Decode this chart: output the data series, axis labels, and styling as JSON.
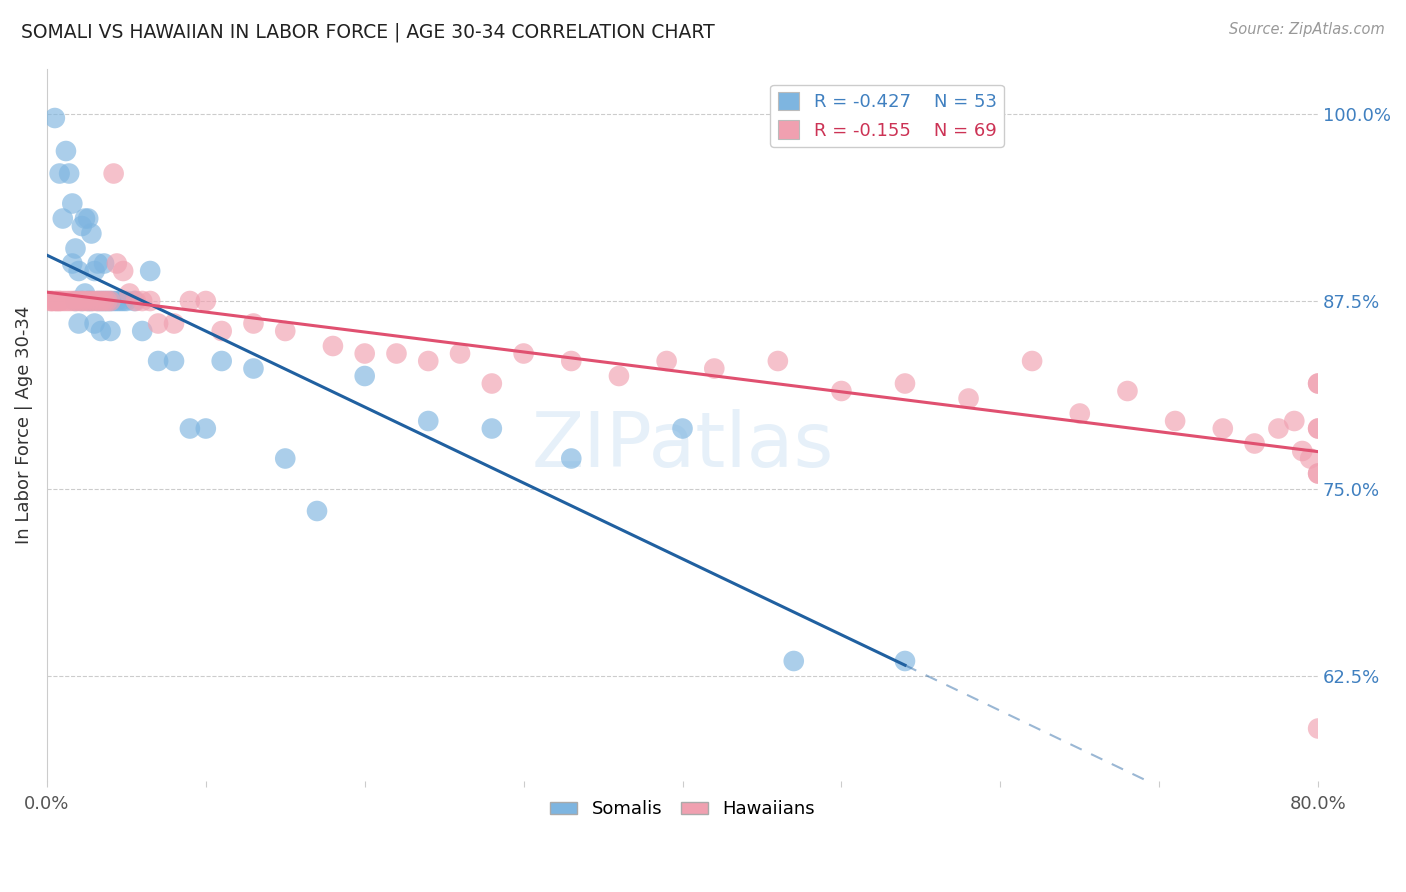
{
  "title": "SOMALI VS HAWAIIAN IN LABOR FORCE | AGE 30-34 CORRELATION CHART",
  "source": "Source: ZipAtlas.com",
  "ylabel": "In Labor Force | Age 30-34",
  "xlim": [
    0.0,
    0.8
  ],
  "ylim": [
    0.555,
    1.03
  ],
  "yticks_right": [
    0.625,
    0.75,
    0.875,
    1.0
  ],
  "yticklabels_right": [
    "62.5%",
    "75.0%",
    "87.5%",
    "100.0%"
  ],
  "legend_somali_R": "-0.427",
  "legend_somali_N": "53",
  "legend_hawaiian_R": "-0.155",
  "legend_hawaiian_N": "69",
  "color_somali": "#7EB5E0",
  "color_hawaiian": "#F0A0B0",
  "color_trend_somali": "#2060A0",
  "color_trend_hawaiian": "#E05070",
  "color_label_blue": "#4080C0",
  "watermark": "ZIPatlas",
  "somali_x": [
    0.005,
    0.008,
    0.01,
    0.012,
    0.014,
    0.016,
    0.016,
    0.018,
    0.018,
    0.02,
    0.02,
    0.022,
    0.022,
    0.024,
    0.024,
    0.026,
    0.026,
    0.028,
    0.028,
    0.03,
    0.03,
    0.032,
    0.032,
    0.034,
    0.034,
    0.036,
    0.036,
    0.038,
    0.04,
    0.04,
    0.042,
    0.044,
    0.046,
    0.048,
    0.05,
    0.055,
    0.06,
    0.065,
    0.07,
    0.08,
    0.09,
    0.1,
    0.11,
    0.13,
    0.15,
    0.17,
    0.2,
    0.24,
    0.28,
    0.33,
    0.4,
    0.47,
    0.54
  ],
  "somali_y": [
    0.997,
    0.96,
    0.93,
    0.975,
    0.96,
    0.9,
    0.94,
    0.875,
    0.91,
    0.895,
    0.86,
    0.925,
    0.875,
    0.93,
    0.88,
    0.93,
    0.875,
    0.875,
    0.92,
    0.895,
    0.86,
    0.9,
    0.875,
    0.875,
    0.855,
    0.9,
    0.875,
    0.875,
    0.875,
    0.855,
    0.875,
    0.875,
    0.875,
    0.875,
    0.875,
    0.875,
    0.855,
    0.895,
    0.835,
    0.835,
    0.79,
    0.79,
    0.835,
    0.83,
    0.77,
    0.735,
    0.825,
    0.795,
    0.79,
    0.77,
    0.79,
    0.635,
    0.635
  ],
  "hawaiian_x": [
    0.002,
    0.003,
    0.004,
    0.006,
    0.006,
    0.008,
    0.008,
    0.01,
    0.012,
    0.014,
    0.016,
    0.018,
    0.02,
    0.022,
    0.024,
    0.026,
    0.028,
    0.03,
    0.032,
    0.034,
    0.036,
    0.038,
    0.04,
    0.042,
    0.044,
    0.048,
    0.052,
    0.056,
    0.06,
    0.065,
    0.07,
    0.08,
    0.09,
    0.1,
    0.11,
    0.13,
    0.15,
    0.18,
    0.2,
    0.22,
    0.24,
    0.26,
    0.28,
    0.3,
    0.33,
    0.36,
    0.39,
    0.42,
    0.46,
    0.5,
    0.54,
    0.58,
    0.62,
    0.65,
    0.68,
    0.71,
    0.74,
    0.76,
    0.775,
    0.785,
    0.79,
    0.795,
    0.8,
    0.8,
    0.8,
    0.8,
    0.8,
    0.8,
    0.8
  ],
  "hawaiian_y": [
    0.875,
    0.875,
    0.875,
    0.875,
    0.875,
    0.875,
    0.875,
    0.875,
    0.875,
    0.875,
    0.875,
    0.875,
    0.875,
    0.875,
    0.875,
    0.875,
    0.875,
    0.875,
    0.875,
    0.875,
    0.875,
    0.875,
    0.875,
    0.96,
    0.9,
    0.895,
    0.88,
    0.875,
    0.875,
    0.875,
    0.86,
    0.86,
    0.875,
    0.875,
    0.855,
    0.86,
    0.855,
    0.845,
    0.84,
    0.84,
    0.835,
    0.84,
    0.82,
    0.84,
    0.835,
    0.825,
    0.835,
    0.83,
    0.835,
    0.815,
    0.82,
    0.81,
    0.835,
    0.8,
    0.815,
    0.795,
    0.79,
    0.78,
    0.79,
    0.795,
    0.775,
    0.77,
    0.59,
    0.82,
    0.82,
    0.79,
    0.76,
    0.79,
    0.76
  ]
}
